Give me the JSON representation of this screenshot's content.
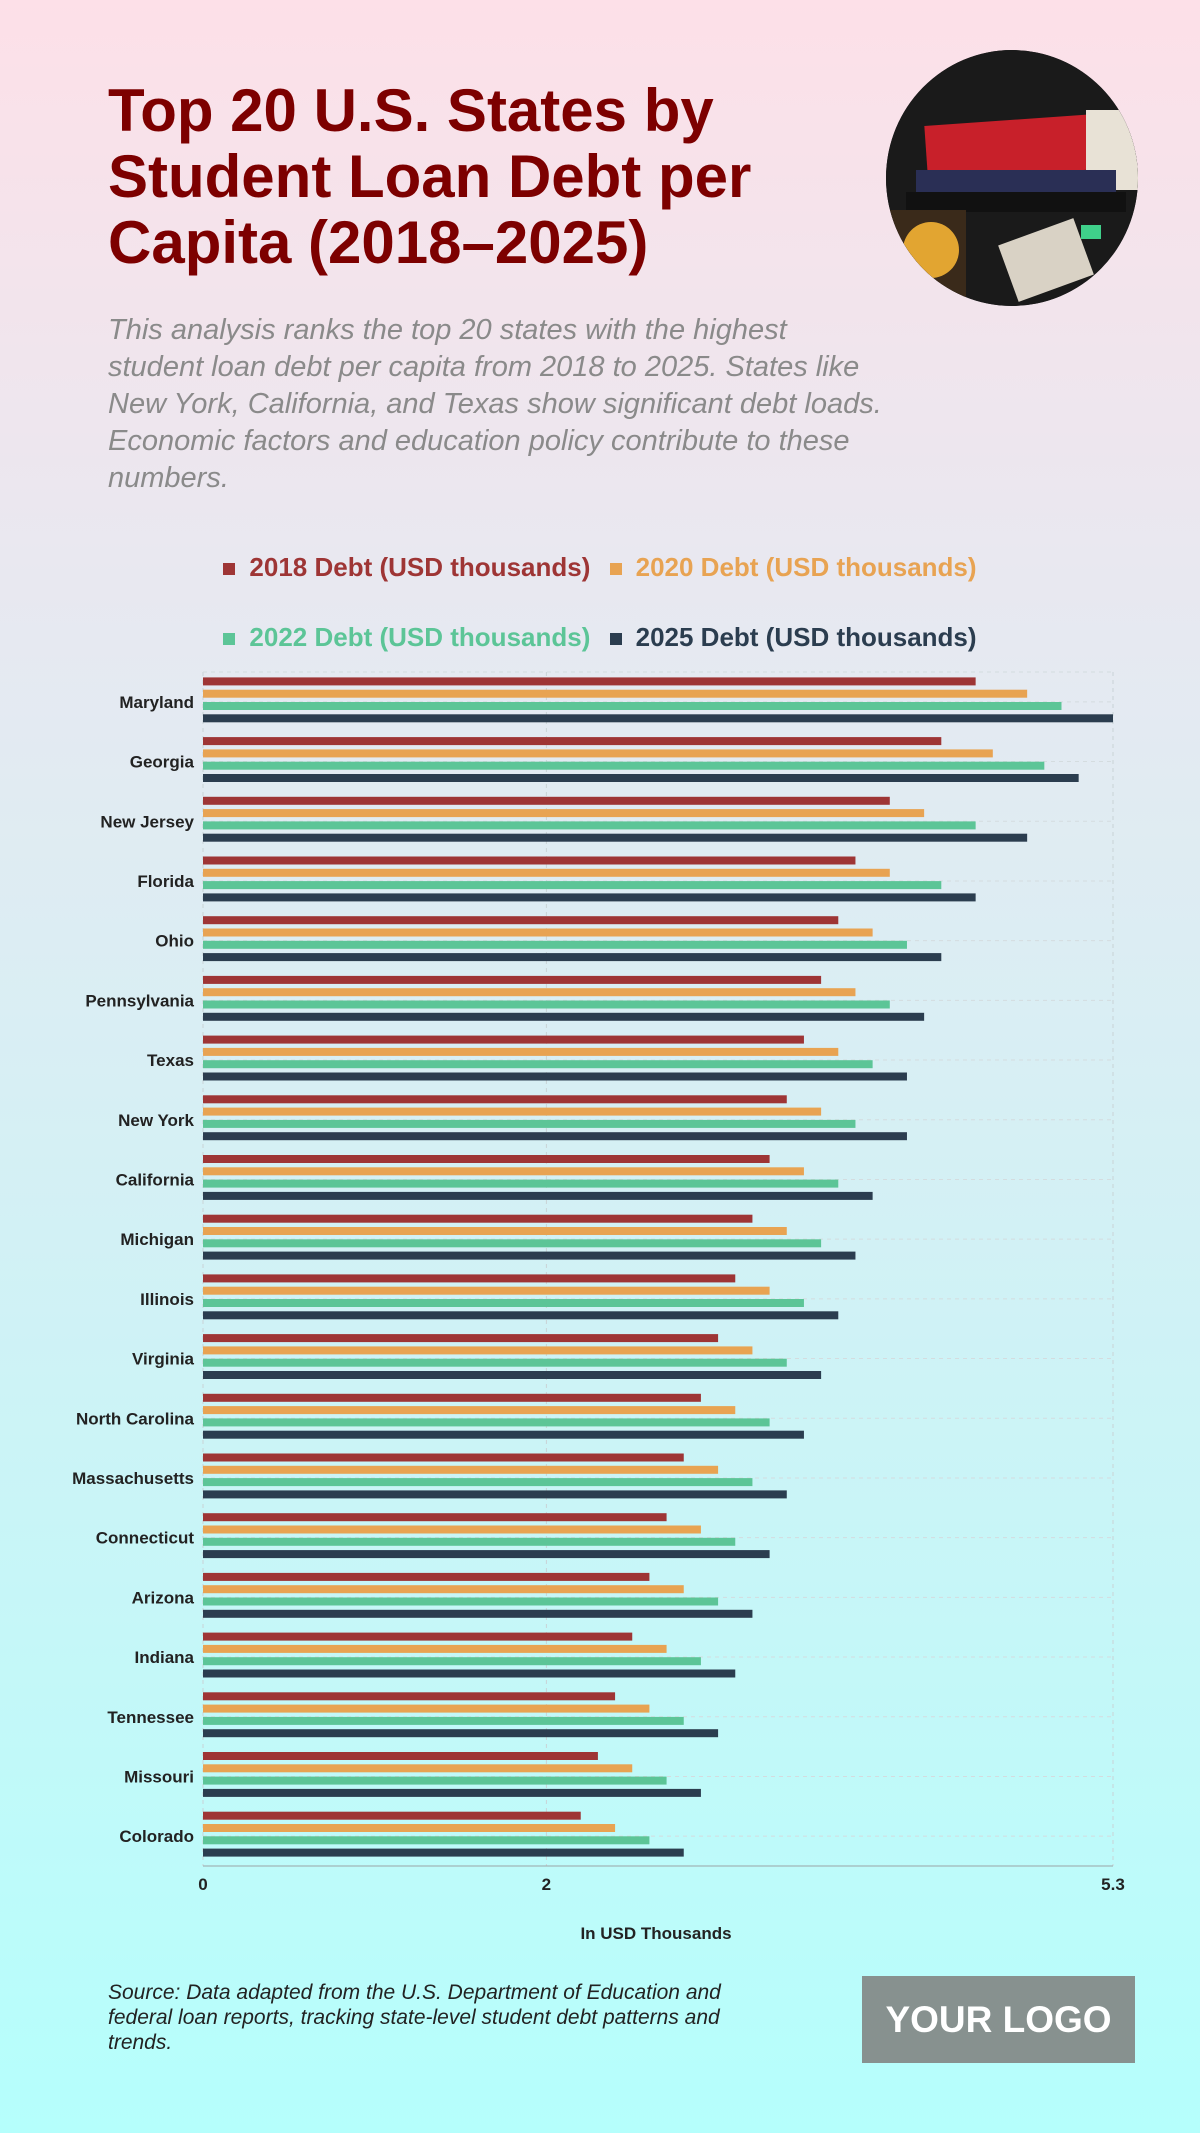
{
  "header": {
    "title": "Top 20 U.S. States by Student Loan Debt per Capita (2018–2025)",
    "subtitle": "This analysis ranks the top 20 states with the highest student loan debt per capita from 2018 to 2025. States like New York, California, and Texas show significant debt loads. Economic factors and education policy contribute to these numbers."
  },
  "footer": {
    "source": "Source: Data adapted from the U.S. Department of Education and federal loan reports, tracking state-level student debt patterns and trends.",
    "logo": "YOUR LOGO"
  },
  "chart_data": {
    "type": "bar",
    "orientation": "horizontal",
    "xlabel": "In USD Thousands",
    "ylabel": "",
    "xlim": [
      0,
      5.3
    ],
    "xticks": [
      "0",
      "2",
      "5.3"
    ],
    "grid": true,
    "legend_position": "top",
    "categories": [
      "Maryland",
      "Georgia",
      "New Jersey",
      "Florida",
      "Ohio",
      "Pennsylvania",
      "Texas",
      "New York",
      "California",
      "Michigan",
      "Illinois",
      "Virginia",
      "North Carolina",
      "Massachusetts",
      "Connecticut",
      "Arizona",
      "Indiana",
      "Tennessee",
      "Missouri",
      "Colorado"
    ],
    "series": [
      {
        "name": "2018 Debt (USD thousands)",
        "color": "#9e3535",
        "values": [
          4.5,
          4.3,
          4.0,
          3.8,
          3.7,
          3.6,
          3.5,
          3.4,
          3.3,
          3.2,
          3.1,
          3.0,
          2.9,
          2.8,
          2.7,
          2.6,
          2.5,
          2.4,
          2.3,
          2.2
        ]
      },
      {
        "name": "2020 Debt (USD thousands)",
        "color": "#e8a352",
        "values": [
          4.8,
          4.6,
          4.2,
          4.0,
          3.9,
          3.8,
          3.7,
          3.6,
          3.5,
          3.4,
          3.3,
          3.2,
          3.1,
          3.0,
          2.9,
          2.8,
          2.7,
          2.6,
          2.5,
          2.4
        ]
      },
      {
        "name": "2022 Debt (USD thousands)",
        "color": "#5cc597",
        "values": [
          5.0,
          4.9,
          4.5,
          4.3,
          4.1,
          4.0,
          3.9,
          3.8,
          3.7,
          3.6,
          3.5,
          3.4,
          3.3,
          3.2,
          3.1,
          3.0,
          2.9,
          2.8,
          2.7,
          2.6
        ]
      },
      {
        "name": "2025 Debt (USD thousands)",
        "color": "#2b3d4f",
        "values": [
          5.3,
          5.1,
          4.8,
          4.5,
          4.3,
          4.2,
          4.1,
          4.1,
          3.9,
          3.8,
          3.7,
          3.6,
          3.5,
          3.4,
          3.3,
          3.2,
          3.1,
          3.0,
          2.9,
          2.8
        ]
      }
    ]
  }
}
